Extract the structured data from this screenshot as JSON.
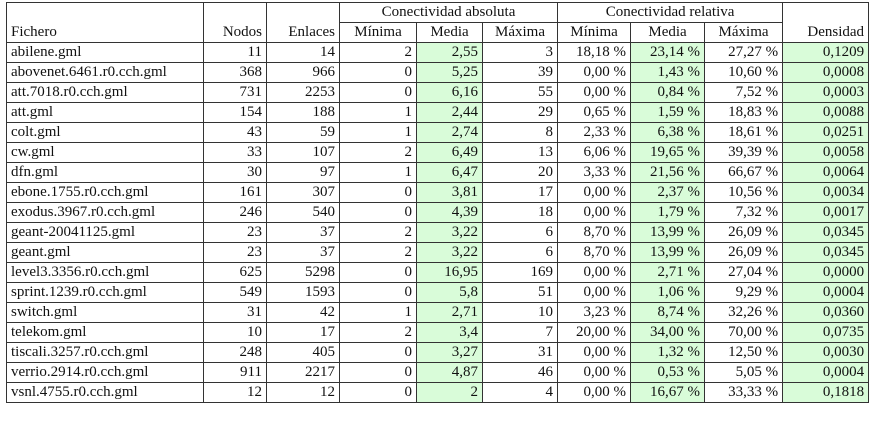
{
  "headers": {
    "fichero": "Fichero",
    "nodos": "Nodos",
    "enlaces": "Enlaces",
    "con_abs": "Conectividad absoluta",
    "con_rel": "Conectividad relativa",
    "minima": "Mínima",
    "media": "Media",
    "maxima": "Máxima",
    "densidad": "Densidad"
  },
  "highlight_color": "#d9fcd9",
  "rows": [
    [
      "abilene.gml",
      "11",
      "14",
      "2",
      "2,55",
      "3",
      "18,18 %",
      "23,14 %",
      "27,27 %",
      "0,1209"
    ],
    [
      "abovenet.6461.r0.cch.gml",
      "368",
      "966",
      "0",
      "5,25",
      "39",
      "0,00 %",
      "1,43 %",
      "10,60 %",
      "0,0008"
    ],
    [
      "att.7018.r0.cch.gml",
      "731",
      "2253",
      "0",
      "6,16",
      "55",
      "0,00 %",
      "0,84 %",
      "7,52 %",
      "0,0003"
    ],
    [
      "att.gml",
      "154",
      "188",
      "1",
      "2,44",
      "29",
      "0,65 %",
      "1,59 %",
      "18,83 %",
      "0,0088"
    ],
    [
      "colt.gml",
      "43",
      "59",
      "1",
      "2,74",
      "8",
      "2,33 %",
      "6,38 %",
      "18,61 %",
      "0,0251"
    ],
    [
      "cw.gml",
      "33",
      "107",
      "2",
      "6,49",
      "13",
      "6,06 %",
      "19,65 %",
      "39,39 %",
      "0,0058"
    ],
    [
      "dfn.gml",
      "30",
      "97",
      "1",
      "6,47",
      "20",
      "3,33 %",
      "21,56 %",
      "66,67 %",
      "0,0064"
    ],
    [
      "ebone.1755.r0.cch.gml",
      "161",
      "307",
      "0",
      "3,81",
      "17",
      "0,00 %",
      "2,37 %",
      "10,56 %",
      "0,0034"
    ],
    [
      "exodus.3967.r0.cch.gml",
      "246",
      "540",
      "0",
      "4,39",
      "18",
      "0,00 %",
      "1,79 %",
      "7,32 %",
      "0,0017"
    ],
    [
      "geant-20041125.gml",
      "23",
      "37",
      "2",
      "3,22",
      "6",
      "8,70 %",
      "13,99 %",
      "26,09 %",
      "0,0345"
    ],
    [
      "geant.gml",
      "23",
      "37",
      "2",
      "3,22",
      "6",
      "8,70 %",
      "13,99 %",
      "26,09 %",
      "0,0345"
    ],
    [
      "level3.3356.r0.cch.gml",
      "625",
      "5298",
      "0",
      "16,95",
      "169",
      "0,00 %",
      "2,71 %",
      "27,04 %",
      "0,0000"
    ],
    [
      "sprint.1239.r0.cch.gml",
      "549",
      "1593",
      "0",
      "5,8",
      "51",
      "0,00 %",
      "1,06 %",
      "9,29 %",
      "0,0004"
    ],
    [
      "switch.gml",
      "31",
      "42",
      "1",
      "2,71",
      "10",
      "3,23 %",
      "8,74 %",
      "32,26 %",
      "0,0360"
    ],
    [
      "telekom.gml",
      "10",
      "17",
      "2",
      "3,4",
      "7",
      "20,00 %",
      "34,00 %",
      "70,00 %",
      "0,0735"
    ],
    [
      "tiscali.3257.r0.cch.gml",
      "248",
      "405",
      "0",
      "3,27",
      "31",
      "0,00 %",
      "1,32 %",
      "12,50 %",
      "0,0030"
    ],
    [
      "verrio.2914.r0.cch.gml",
      "911",
      "2217",
      "0",
      "4,87",
      "46",
      "0,00 %",
      "0,53 %",
      "5,05 %",
      "0,0004"
    ],
    [
      "vsnl.4755.r0.cch.gml",
      "12",
      "12",
      "0",
      "2",
      "4",
      "0,00 %",
      "16,67 %",
      "33,33 %",
      "0,1818"
    ]
  ]
}
